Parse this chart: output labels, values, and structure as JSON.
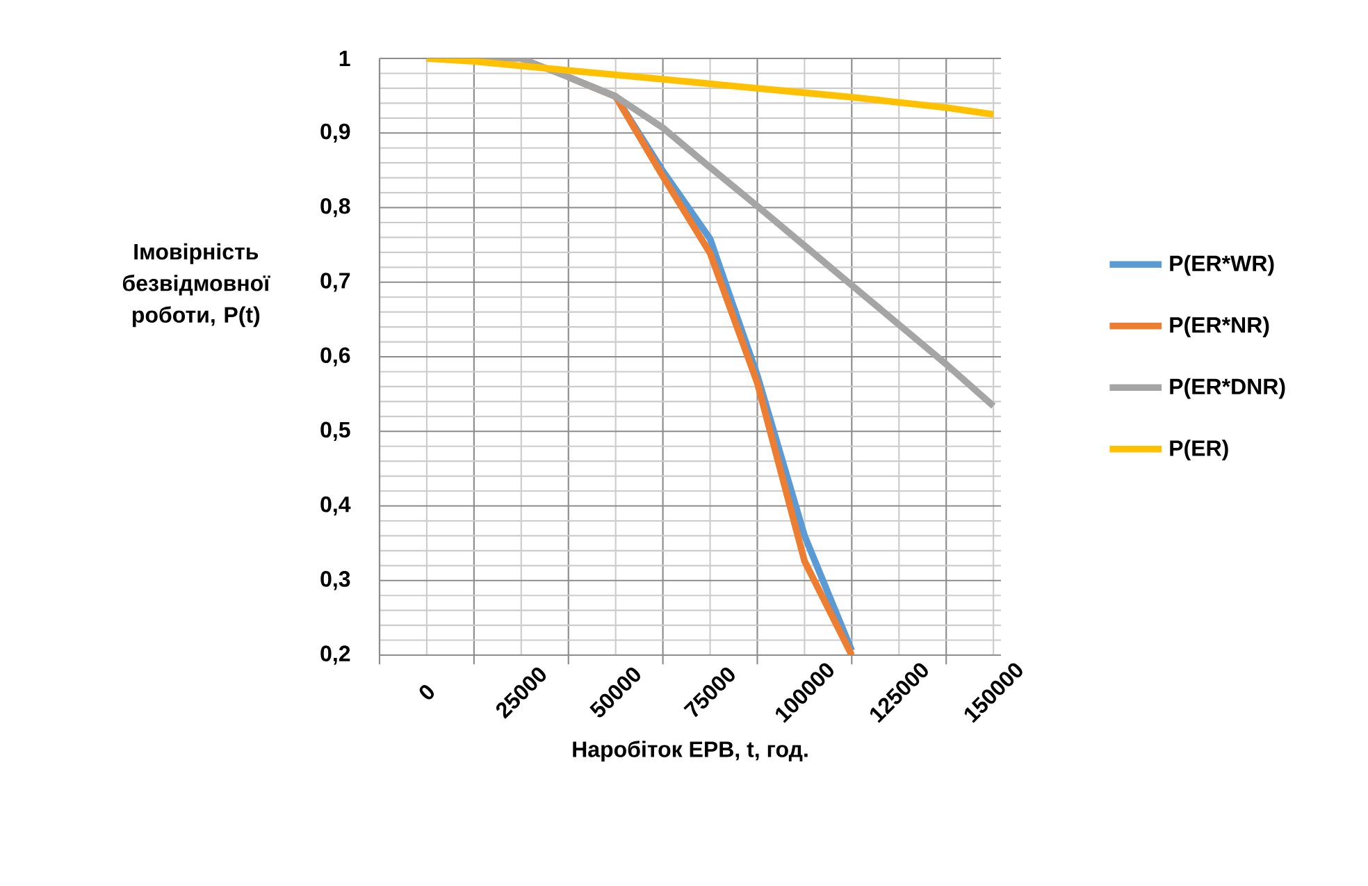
{
  "chart_data": {
    "type": "line",
    "xlabel": "Наробіток ЕРВ, t, год.",
    "ylabel": "Імовірність безвідмовної роботи, P(t)",
    "x": [
      0,
      12500,
      25000,
      37500,
      50000,
      62500,
      75000,
      87500,
      100000,
      112500,
      125000,
      137500,
      150000
    ],
    "xlim": [
      -12500,
      152000
    ],
    "xticks": [
      0,
      25000,
      50000,
      75000,
      100000,
      125000,
      150000
    ],
    "ylim": [
      0.2,
      1
    ],
    "yticks": [
      {
        "value": 0.2,
        "label": "0,2"
      },
      {
        "value": 0.3,
        "label": "0,3"
      },
      {
        "value": 0.4,
        "label": "0,4"
      },
      {
        "value": 0.5,
        "label": "0,5"
      },
      {
        "value": 0.6,
        "label": "0,6"
      },
      {
        "value": 0.7,
        "label": "0,7"
      },
      {
        "value": 0.8,
        "label": "0,8"
      },
      {
        "value": 0.9,
        "label": "0,9"
      },
      1
    ],
    "grid": true,
    "legend": "right",
    "line_style": "solid",
    "series": [
      {
        "name": "P(ER*WR)",
        "color": "#5b9bd5",
        "values": [
          null,
          null,
          null,
          0.975,
          0.949,
          0.849,
          0.758,
          0.575,
          0.36,
          0.206,
          null,
          null,
          null
        ]
      },
      {
        "name": "P(ER*NR)",
        "color": "#ed7d31",
        "values": [
          null,
          null,
          null,
          0.975,
          0.949,
          0.842,
          0.739,
          0.565,
          0.326,
          0.2,
          null,
          null,
          null
        ]
      },
      {
        "name": "P(ER*DNR)",
        "color": "#a5a5a5",
        "values": [
          1,
          1,
          1,
          0.975,
          0.949,
          0.907,
          0.854,
          0.802,
          0.749,
          0.696,
          0.643,
          0.59,
          0.534
        ]
      },
      {
        "name": "P(ER)",
        "color": "#ffc000",
        "values": [
          1,
          0.996,
          0.99,
          0.984,
          0.978,
          0.972,
          0.966,
          0.96,
          0.954,
          0.948,
          0.941,
          0.934,
          0.925
        ]
      }
    ]
  }
}
